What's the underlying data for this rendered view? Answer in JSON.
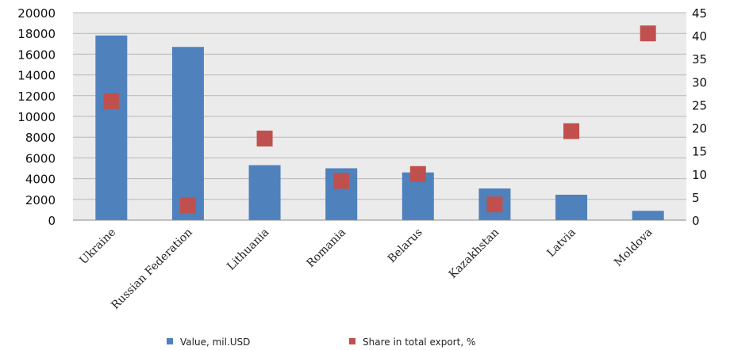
{
  "chart_data": {
    "type": "bar",
    "categories": [
      "Ukraine",
      "Russian Federation",
      "Lithuania",
      "Romania",
      "Belarus",
      "Kazakhstan",
      "Latvia",
      "Moldova"
    ],
    "series": [
      {
        "name": "Value, mil.USD",
        "type": "bar",
        "axis": "left",
        "color": "#4f81bd",
        "values": [
          17800,
          16700,
          5300,
          5000,
          4600,
          3050,
          2450,
          900
        ]
      },
      {
        "name": "Share in total export, %",
        "type": "scatter",
        "axis": "right",
        "color": "#c0504d",
        "values": [
          25.8,
          3.2,
          17.7,
          8.5,
          10.0,
          3.4,
          19.3,
          40.5
        ]
      }
    ],
    "y_left": {
      "ylim": [
        0,
        20000
      ],
      "ticks": [
        0,
        2000,
        4000,
        6000,
        8000,
        10000,
        12000,
        14000,
        16000,
        18000,
        20000
      ]
    },
    "y_right": {
      "ylim": [
        0,
        45
      ],
      "ticks": [
        0,
        5,
        10,
        15,
        20,
        25,
        30,
        35,
        40,
        45
      ]
    },
    "grid": true,
    "plot_background": "#ebebeb",
    "legend": "bottom"
  }
}
